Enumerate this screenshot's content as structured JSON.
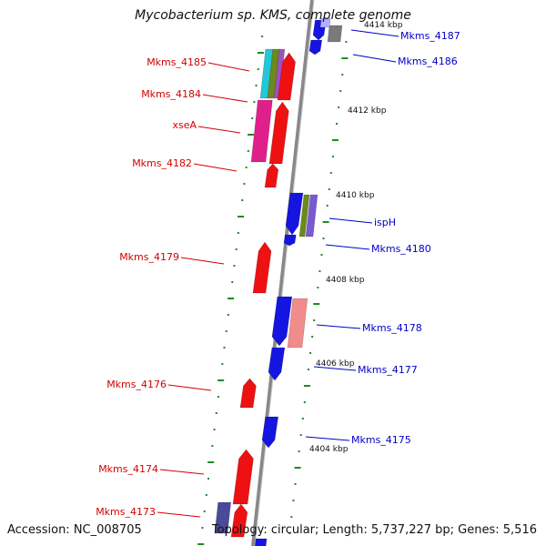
{
  "title": "Mycobacterium sp. KMS, complete genome",
  "accession": "Accession: NC_008705",
  "topology": "Topology: circular; Length: 5,737,227 bp; Genes: 5,516",
  "colors": {
    "left_label": "#d40000",
    "right_label": "#0000c8",
    "tick_green": "#1e8c1e",
    "backbone": "#8a8a8a"
  },
  "kbp_labels": [
    "4412 kbp",
    "4410 kbp",
    "4408 kbp",
    "4406 kbp",
    "4404 kbp",
    "4414 kbp"
  ],
  "left_labels": [
    "Mkms_4185",
    "Mkms_4184",
    "xseA",
    "Mkms_4182",
    "Mkms_4179",
    "Mkms_4176",
    "Mkms_4174",
    "Mkms_4173"
  ],
  "right_labels": [
    "Mkms_4187",
    "Mkms_4186",
    "ispH",
    "Mkms_4180",
    "Mkms_4178",
    "Mkms_4177",
    "Mkms_4175"
  ]
}
